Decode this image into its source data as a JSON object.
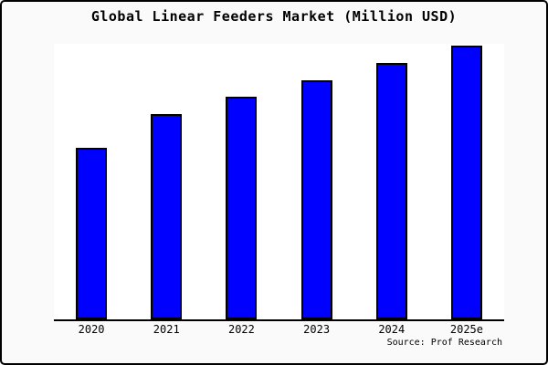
{
  "window": {
    "title": "Global Linear Feeders Market (Million USD)"
  },
  "chart_data": {
    "type": "bar",
    "title": "Global Linear Feeders Market (Million USD)",
    "categories": [
      "2020",
      "2021",
      "2022",
      "2023",
      "2024",
      "2025e"
    ],
    "values": [
      188,
      225,
      244,
      262,
      281,
      300
    ],
    "xlabel": "",
    "ylabel": "",
    "ylim": [
      0,
      302
    ],
    "grid": false,
    "legend_position": "none",
    "y_axis_labels_visible": false,
    "source": "Source: Prof Research"
  },
  "colors": {
    "bar_fill": "#0000FF",
    "bar_border": "#000000",
    "figure_background": "#FAFAFA",
    "plot_background": "#FFFFFF",
    "axis": "#000000",
    "text": "#000000"
  }
}
